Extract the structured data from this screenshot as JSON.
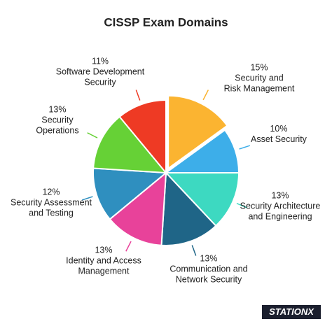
{
  "chart_data": {
    "type": "pie",
    "title": "CISSP Exam Domains",
    "categories": [
      [
        "Security and",
        "Risk Management"
      ],
      [
        "Asset Security"
      ],
      [
        "Security Architecture",
        "and Engineering"
      ],
      [
        "Communication and",
        "Network Security"
      ],
      [
        "Identity and Access",
        "Management"
      ],
      [
        "Security Assessment",
        "and Testing"
      ],
      [
        "Security",
        "Operations"
      ],
      [
        "Software Development",
        "Security"
      ]
    ],
    "values": [
      15,
      10,
      13,
      13,
      13,
      12,
      13,
      11
    ],
    "value_labels": [
      "15%",
      "10%",
      "13%",
      "13%",
      "13%",
      "12%",
      "13%",
      "11%"
    ],
    "colors": [
      "#fbb431",
      "#3daee9",
      "#3dd9c1",
      "#1f6587",
      "#e8429a",
      "#2f8fbf",
      "#66d136",
      "#ee3a24"
    ],
    "logo": "STATIONX"
  }
}
